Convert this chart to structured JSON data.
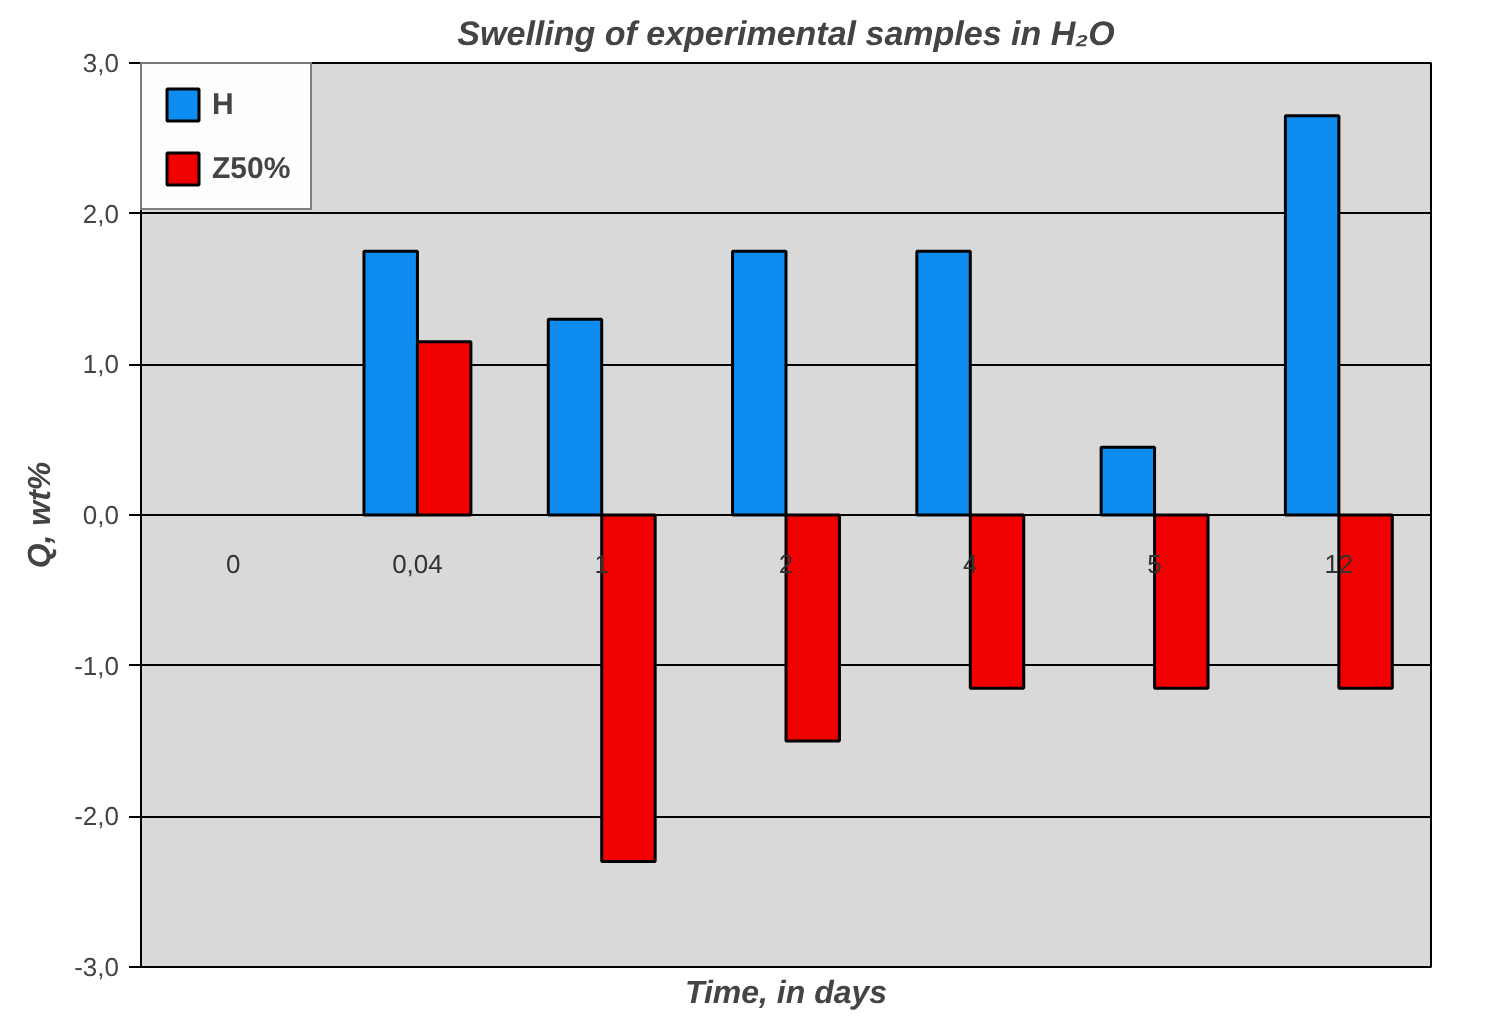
{
  "chart_data": {
    "type": "bar",
    "title": "Swelling of experimental samples in H₂O",
    "xlabel": "Time, in days",
    "ylabel": "Q, wt%",
    "categories": [
      "0",
      "0,04",
      "1",
      "2",
      "4",
      "5",
      "12"
    ],
    "series": [
      {
        "name": "H",
        "color": "#0f8cf0",
        "values": [
          null,
          1.75,
          1.3,
          1.75,
          1.75,
          0.45,
          2.65
        ]
      },
      {
        "name": "Z50%",
        "color": "#f00000",
        "values": [
          null,
          1.15,
          -2.3,
          -1.5,
          -1.15,
          -1.15,
          -1.15
        ]
      }
    ],
    "ylim": [
      -3,
      3
    ],
    "yticks": [
      {
        "value": -3,
        "label": "-3,0"
      },
      {
        "value": -2,
        "label": "-2,0"
      },
      {
        "value": -1,
        "label": "-1,0"
      },
      {
        "value": 0,
        "label": "0,0"
      },
      {
        "value": 1,
        "label": "1,0"
      },
      {
        "value": 2,
        "label": "2,0"
      },
      {
        "value": 3,
        "label": "3,0"
      }
    ],
    "grid": "y",
    "legend": "top left"
  }
}
